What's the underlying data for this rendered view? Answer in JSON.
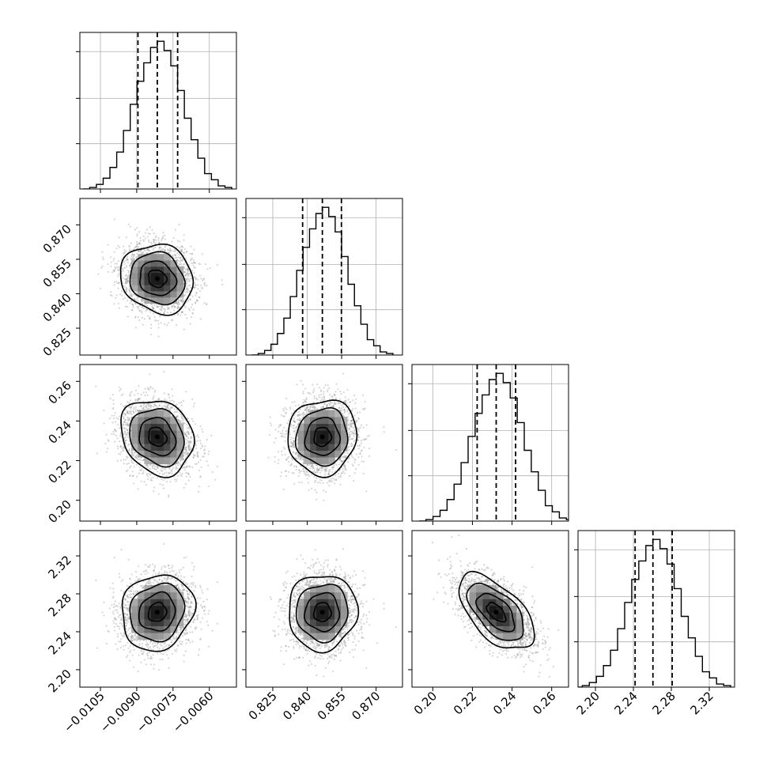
{
  "chart_data": {
    "type": "corner",
    "title": "",
    "grid": true,
    "params": [
      {
        "ticks": [
          -0.0105,
          -0.009,
          -0.0075,
          -0.006
        ],
        "tick_labels": [
          "−0.0105",
          "−0.0090",
          "−0.0075",
          "−0.0060"
        ],
        "range": [
          -0.01135,
          -0.00488
        ],
        "mean": -0.00815,
        "quantiles": [
          -0.00895,
          -0.00815,
          -0.00731
        ],
        "sd": 0.00075,
        "hist_bins": [
          0,
          1,
          3,
          7,
          14,
          24,
          38,
          55,
          70,
          82,
          92,
          96,
          90,
          80,
          64,
          46,
          32,
          20,
          10,
          6,
          2,
          1
        ]
      },
      {
        "ticks": [
          0.825,
          0.84,
          0.855,
          0.87
        ],
        "tick_labels": [
          "0.825",
          "0.840",
          "0.855",
          "0.870"
        ],
        "range": [
          0.8133,
          0.8815
        ],
        "mean": 0.8466,
        "quantiles": [
          0.838,
          0.8466,
          0.8549
        ],
        "sd": 0.0075,
        "hist_bins": [
          0,
          1,
          3,
          7,
          14,
          24,
          38,
          55,
          70,
          82,
          92,
          96,
          90,
          80,
          64,
          46,
          32,
          20,
          10,
          6,
          2,
          1
        ]
      },
      {
        "ticks": [
          0.2,
          0.22,
          0.24,
          0.26
        ],
        "tick_labels": [
          "0.20",
          "0.22",
          "0.24",
          "0.26"
        ],
        "range": [
          0.1895,
          0.2685
        ],
        "mean": 0.232,
        "quantiles": [
          0.2224,
          0.232,
          0.2418
        ],
        "sd": 0.0095,
        "hist_bins": [
          0,
          1,
          3,
          7,
          14,
          24,
          38,
          55,
          70,
          82,
          92,
          96,
          90,
          80,
          64,
          46,
          32,
          20,
          10,
          6,
          2,
          1
        ]
      },
      {
        "ticks": [
          2.2,
          2.24,
          2.28,
          2.32
        ],
        "tick_labels": [
          "2.20",
          "2.24",
          "2.28",
          "2.32"
        ],
        "range": [
          2.1816,
          2.3467
        ],
        "mean": 2.2606,
        "quantiles": [
          2.2418,
          2.2606,
          2.2809
        ],
        "sd": 0.02,
        "hist_bins": [
          0,
          1,
          3,
          7,
          14,
          24,
          38,
          55,
          70,
          82,
          92,
          96,
          90,
          80,
          64,
          46,
          32,
          20,
          10,
          6,
          2,
          1
        ]
      }
    ],
    "correlations": {
      "1-0": -0.12,
      "2-0": -0.18,
      "2-1": 0.05,
      "3-0": 0.12,
      "3-1": 0.03,
      "3-2": -0.58
    },
    "contour_levels_sigma": [
      0.5,
      1.0,
      1.5,
      2.0
    ]
  }
}
